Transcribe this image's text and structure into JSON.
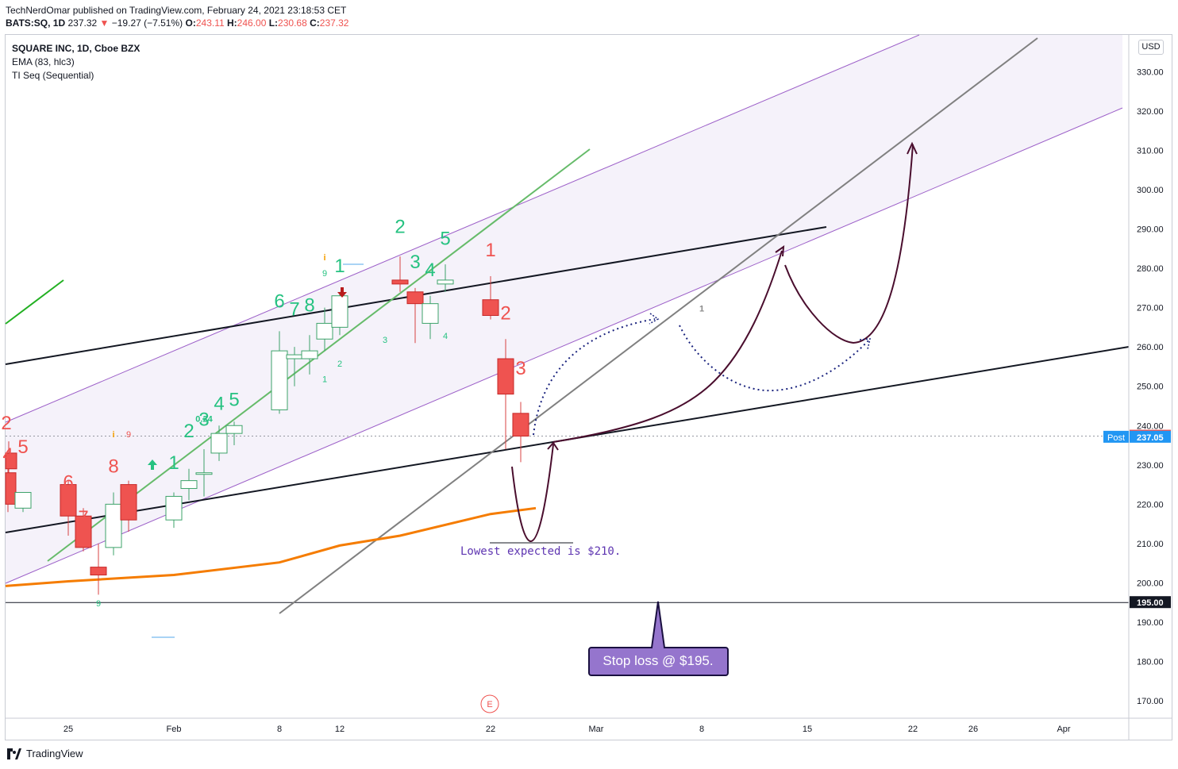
{
  "header": {
    "publisher": "TechNerdOmar published on TradingView.com, February 24, 2021 23:18:53 CET",
    "symbol": "BATS:SQ, 1D",
    "last": "237.32",
    "change_arrow": "▼",
    "change": "−19.27 (−7.51%)",
    "o_label": "O:",
    "o_value": "243.11",
    "h_label": "H:",
    "h_value": "246.00",
    "l_label": "L:",
    "l_value": "230.68",
    "c_label": "C:",
    "c_value": "237.32"
  },
  "legend": {
    "title": "SQUARE INC, 1D, Cboe BZX",
    "ema": "EMA (83, hlc3)",
    "ti": "TI Seq (Sequential)"
  },
  "axis": {
    "currency": "USD"
  },
  "footer": {
    "brand": "TradingView"
  },
  "chart_data": {
    "type": "candlestick",
    "colors": {
      "up": "#26a69a",
      "down": "#ef5350",
      "ema": "#f57c00",
      "channel": "#9c27b0",
      "trendline_green": "#66bb6a",
      "annotation": "#4a0e2e",
      "dotted": "#1a237e",
      "stop_box": "#9575cd"
    },
    "y_ticks": [
      330,
      320,
      310,
      300,
      290,
      280,
      270,
      260,
      250,
      240,
      230,
      220,
      210,
      200,
      190,
      180,
      170
    ],
    "y_tick_labels": [
      "330.00",
      "320.00",
      "310.00",
      "300.00",
      "290.00",
      "280.00",
      "270.00",
      "260.00",
      "250.00",
      "240.00",
      "230.00",
      "220.00",
      "210.00",
      "200.00",
      "190.00",
      "180.00",
      "170.00"
    ],
    "x_ticks": [
      {
        "date": "2021-01-25",
        "label": "25"
      },
      {
        "date": "2021-02-01",
        "label": "Feb"
      },
      {
        "date": "2021-02-08",
        "label": "8"
      },
      {
        "date": "2021-02-12",
        "label": "12"
      },
      {
        "date": "2021-02-22",
        "label": "22"
      },
      {
        "date": "2021-03-01",
        "label": "Mar"
      },
      {
        "date": "2021-03-08",
        "label": "8"
      },
      {
        "date": "2021-03-15",
        "label": "15"
      },
      {
        "date": "2021-03-22",
        "label": "22"
      },
      {
        "date": "2021-03-26",
        "label": "26"
      },
      {
        "date": "2021-04-01",
        "label": "Apr"
      }
    ],
    "candles": [
      {
        "date": "2021-01-20",
        "open": 233,
        "high": 236,
        "low": 228,
        "close": 229
      },
      {
        "date": "2021-01-21",
        "open": 228,
        "high": 229,
        "low": 218,
        "close": 220
      },
      {
        "date": "2021-01-22",
        "open": 219,
        "high": 223,
        "low": 218,
        "close": 223
      },
      {
        "date": "2021-01-25",
        "open": 225,
        "high": 226,
        "low": 212,
        "close": 217
      },
      {
        "date": "2021-01-26",
        "open": 217,
        "high": 219,
        "low": 208,
        "close": 209
      },
      {
        "date": "2021-01-27",
        "open": 204,
        "high": 210,
        "low": 197,
        "close": 202
      },
      {
        "date": "2021-01-28",
        "open": 209,
        "high": 223,
        "low": 207,
        "close": 220
      },
      {
        "date": "2021-01-29",
        "open": 225,
        "high": 226,
        "low": 213,
        "close": 216
      },
      {
        "date": "2021-02-01",
        "open": 216,
        "high": 223,
        "low": 214,
        "close": 222
      },
      {
        "date": "2021-02-02",
        "open": 224,
        "high": 229,
        "low": 221,
        "close": 226
      },
      {
        "date": "2021-02-03",
        "open": 228,
        "high": 234,
        "low": 222,
        "close": 228
      },
      {
        "date": "2021-02-04",
        "open": 233,
        "high": 240,
        "low": 231,
        "close": 238
      },
      {
        "date": "2021-02-05",
        "open": 238,
        "high": 241,
        "low": 235,
        "close": 240
      },
      {
        "date": "2021-02-08",
        "open": 244,
        "high": 264,
        "low": 243,
        "close": 259
      },
      {
        "date": "2021-02-09",
        "open": 257,
        "high": 260,
        "low": 250,
        "close": 258
      },
      {
        "date": "2021-02-10",
        "open": 257,
        "high": 263,
        "low": 253,
        "close": 259
      },
      {
        "date": "2021-02-11",
        "open": 262,
        "high": 270,
        "low": 259,
        "close": 266
      },
      {
        "date": "2021-02-12",
        "open": 265,
        "high": 274,
        "low": 263,
        "close": 273
      },
      {
        "date": "2021-02-16",
        "open": 277,
        "high": 283,
        "low": 274,
        "close": 276
      },
      {
        "date": "2021-02-17",
        "open": 274,
        "high": 275,
        "low": 261,
        "close": 271
      },
      {
        "date": "2021-02-18",
        "open": 266,
        "high": 273,
        "low": 262,
        "close": 271
      },
      {
        "date": "2021-02-19",
        "open": 276,
        "high": 281,
        "low": 274,
        "close": 277
      },
      {
        "date": "2021-02-22",
        "open": 272,
        "high": 278,
        "low": 267,
        "close": 268
      },
      {
        "date": "2021-02-23",
        "open": 257,
        "high": 262,
        "low": 234,
        "close": 248
      },
      {
        "date": "2021-02-24",
        "open": 243.11,
        "high": 246,
        "low": 230.68,
        "close": 237.32
      }
    ],
    "ema_series": {
      "name": "EMA (83, hlc3)",
      "points": [
        {
          "date": "2021-01-15",
          "value": 199.2
        },
        {
          "date": "2021-01-25",
          "value": 200.4
        },
        {
          "date": "2021-02-01",
          "value": 202.0
        },
        {
          "date": "2021-02-08",
          "value": 205.2
        },
        {
          "date": "2021-02-12",
          "value": 209.5
        },
        {
          "date": "2021-02-16",
          "value": 212.0
        },
        {
          "date": "2021-02-22",
          "value": 217.5
        },
        {
          "date": "2021-02-25",
          "value": 219.0
        }
      ]
    },
    "sequential_labels": [
      {
        "date": "2021-01-19",
        "text": "2",
        "color": "#ef5350",
        "size": "big",
        "price": 239
      },
      {
        "date": "2021-01-20",
        "text": "3",
        "color": "#ef5350",
        "size": "big",
        "price": 236
      },
      {
        "date": "2021-01-21",
        "text": "4",
        "color": "#ef5350",
        "size": "big",
        "price": 231
      },
      {
        "date": "2021-01-22",
        "text": "5",
        "color": "#ef5350",
        "size": "big",
        "price": 233
      },
      {
        "date": "2021-01-25",
        "text": "6",
        "color": "#ef5350",
        "size": "big",
        "price": 224
      },
      {
        "date": "2021-01-26",
        "text": "7",
        "color": "#ef5350",
        "size": "big",
        "price": 215
      },
      {
        "date": "2021-01-28",
        "text": "8",
        "color": "#ef5350",
        "size": "big",
        "price": 228
      },
      {
        "date": "2021-01-29",
        "text": "9",
        "color": "#ef5350",
        "size": "small",
        "price": 237
      },
      {
        "date": "2021-01-27",
        "text": "9",
        "color": "#26c281",
        "size": "small",
        "price": 194
      },
      {
        "date": "2021-02-01",
        "text": "1",
        "color": "#26c281",
        "size": "big",
        "price": 229
      },
      {
        "date": "2021-02-02",
        "text": "2",
        "color": "#26c281",
        "size": "big",
        "price": 237
      },
      {
        "date": "2021-02-03",
        "text": "3",
        "color": "#26c281",
        "size": "big",
        "price": 240
      },
      {
        "date": "2021-02-04",
        "text": "4",
        "color": "#26c281",
        "size": "big",
        "price": 244
      },
      {
        "date": "2021-02-05",
        "text": "5",
        "color": "#26c281",
        "size": "big",
        "price": 245
      },
      {
        "date": "2021-02-08",
        "text": "6",
        "color": "#26c281",
        "size": "big",
        "price": 270
      },
      {
        "date": "2021-02-09",
        "text": "7",
        "color": "#26c281",
        "size": "big",
        "price": 268
      },
      {
        "date": "2021-02-10",
        "text": "8",
        "color": "#26c281",
        "size": "big",
        "price": 269
      },
      {
        "date": "2021-02-11",
        "text": "9",
        "color": "#26c281",
        "size": "small",
        "price": 278
      },
      {
        "date": "2021-02-12",
        "text": "1",
        "color": "#26c281",
        "size": "big",
        "price": 279
      },
      {
        "date": "2021-02-16",
        "text": "2",
        "color": "#26c281",
        "size": "big",
        "price": 289
      },
      {
        "date": "2021-02-17",
        "text": "3",
        "color": "#26c281",
        "size": "big",
        "price": 280
      },
      {
        "date": "2021-02-18",
        "text": "4",
        "color": "#26c281",
        "size": "big",
        "price": 278
      },
      {
        "date": "2021-02-19",
        "text": "5",
        "color": "#26c281",
        "size": "big",
        "price": 286
      },
      {
        "date": "2021-02-22",
        "text": "1",
        "color": "#ef5350",
        "size": "big",
        "price": 283
      },
      {
        "date": "2021-02-23",
        "text": "2",
        "color": "#ef5350",
        "size": "big",
        "price": 267
      },
      {
        "date": "2021-02-24",
        "text": "3",
        "color": "#ef5350",
        "size": "big",
        "price": 253
      },
      {
        "date": "2021-02-11",
        "text": "1",
        "color": "#26c281",
        "size": "small",
        "price": 251
      },
      {
        "date": "2021-02-12",
        "text": "2",
        "color": "#26c281",
        "size": "small",
        "price": 255
      },
      {
        "date": "2021-02-15",
        "text": "3",
        "color": "#26c281",
        "size": "small",
        "price": 261
      },
      {
        "date": "2021-02-19",
        "text": "4",
        "color": "#26c281",
        "size": "small",
        "price": 262
      }
    ],
    "small_misc_labels": [
      {
        "date": "2021-02-03",
        "text": "0.24",
        "color": "#26c281",
        "price": 241
      },
      {
        "date": "2021-03-08",
        "text": "1",
        "color": "#888888",
        "price": 269
      },
      {
        "date": "2021-01-28",
        "text": "i",
        "color": "#f59f00",
        "price": 237
      },
      {
        "date": "2021-02-11",
        "text": "i",
        "color": "#f59f00",
        "price": 282
      }
    ],
    "price_labels": [
      {
        "value": 237.32,
        "label": "237.32",
        "bg": "#ef5350"
      },
      {
        "value": 237.05,
        "label": "237.05",
        "bg": "#2196f3",
        "tag": "Post"
      },
      {
        "value": 195.0,
        "label": "195.00",
        "bg": "#131722"
      }
    ],
    "annotations": {
      "lowest_text": "Lowest expected is $210.",
      "stop_loss_text": "Stop loss @ $195.",
      "earnings_marker": "E"
    }
  }
}
